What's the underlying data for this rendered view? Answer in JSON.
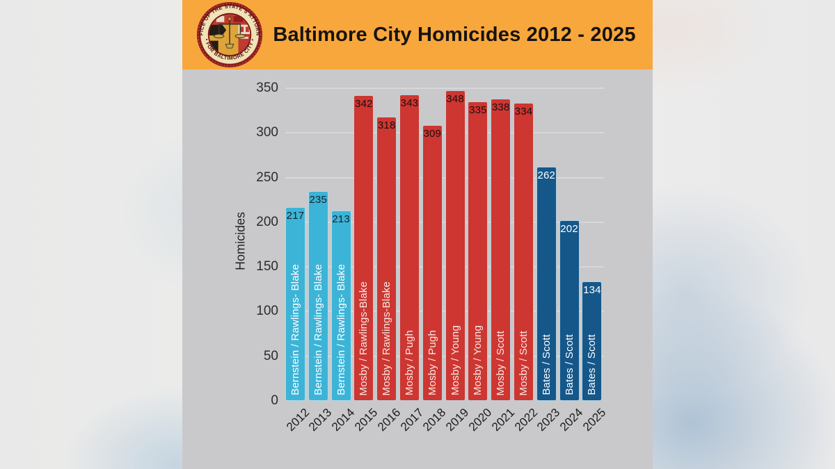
{
  "header": {
    "title": "Baltimore City Homicides 2012 - 2025",
    "seal": {
      "arc_top": "OFFICE OF THE STATE'S ATTORNEY",
      "arc_bottom": "• FOR BALTIMORE CITY •"
    },
    "bg_color": "#f7a73b"
  },
  "chart_data": {
    "type": "bar",
    "title": "Baltimore City Homicides 2012 - 2025",
    "xlabel": "",
    "ylabel": "Homicides",
    "ylim": [
      0,
      350
    ],
    "yticks": [
      0,
      50,
      100,
      150,
      200,
      250,
      300,
      350
    ],
    "grid": true,
    "legend": "none",
    "plot_bg_color": "#c9c9cb",
    "categories": [
      "2012",
      "2013",
      "2014",
      "2015",
      "2016",
      "2017",
      "2018",
      "2019",
      "2020",
      "2021",
      "2022",
      "2023",
      "2024",
      "2025"
    ],
    "values": [
      217,
      235,
      213,
      342,
      318,
      343,
      309,
      348,
      335,
      338,
      334,
      262,
      202,
      134
    ],
    "bar_labels": [
      "Bernstein / Rawlings- Blake",
      "Bernstein / Rawlings- Blake",
      "Bernstein / Rawlings- Blake",
      "Mosby / Rawlings-Blake",
      "Mosby / Rawlings-Blake",
      "Mosby / Pugh",
      "Mosby / Pugh",
      "Mosby / Young",
      "Mosby / Young",
      "Mosby / Scott",
      "Mosby / Scott",
      "Bates / Scott",
      "Bates / Scott",
      "Bates / Scott"
    ],
    "groups": [
      "bernstein",
      "bernstein",
      "bernstein",
      "mosby",
      "mosby",
      "mosby",
      "mosby",
      "mosby",
      "mosby",
      "mosby",
      "mosby",
      "bates",
      "bates",
      "bates"
    ],
    "group_styles": {
      "bernstein": {
        "bar_color": "#3cb4d8",
        "value_color": "#14222a",
        "name_color": "#ffffff"
      },
      "mosby": {
        "bar_color": "#ce3632",
        "value_color": "#1d0e0d",
        "name_color": "#f8e9e6"
      },
      "bates": {
        "bar_color": "#16578a",
        "value_color": "#ffffff",
        "name_color": "#ffffff"
      }
    }
  }
}
